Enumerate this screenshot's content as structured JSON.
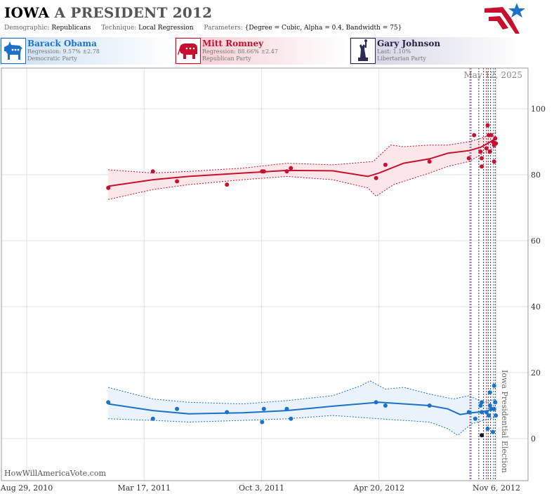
{
  "header": {
    "state": "IOWA",
    "title_rest": "A PRESIDENT 2012",
    "demographic_label": "Demographic:",
    "demographic_value": "Republicans",
    "technique_label": "Technique:",
    "technique_value": "Local Regression",
    "parameters_label": "Parameters:",
    "parameters_value": "{Degree = Cubic, Alpha = 0.4, Bandwidth = 75}",
    "logo_icon": "star-flag-logo-icon"
  },
  "candidates": [
    {
      "name": "Barack Obama",
      "stat": "Regression: 9.57% ±2.78",
      "party": "Democratic Party",
      "color": "#1a73c9",
      "icon": "donkey-icon"
    },
    {
      "name": "Mitt Romney",
      "stat": "Regression: 88.66% ±2.47",
      "party": "Republican Party",
      "color": "#c8102e",
      "icon": "elephant-icon"
    },
    {
      "name": "Gary Johnson",
      "stat": "Last: 1.10%",
      "party": "Libertarian Party",
      "color": "#222244",
      "icon": "statue-of-liberty-icon"
    }
  ],
  "chart_data": {
    "type": "scatter",
    "date_label": "May 12, 2025",
    "event_label": "Iowa Presidential Election",
    "watermark": "HowWillAmericaVote.com",
    "x_ticks": [
      "2010-08-29",
      "2011-03-17",
      "2011-10-03",
      "2012-04-20",
      "2012-11-06"
    ],
    "x_tick_labels": [
      "Aug 29, 2010",
      "Mar 17, 2011",
      "Oct 3, 2011",
      "Apr 20, 2012",
      "Nov 6, 2012"
    ],
    "xlim": [
      "2010-08-29",
      "2012-11-06"
    ],
    "y_ticks": [
      0,
      20,
      40,
      60,
      80,
      100
    ],
    "ylim": [
      -5,
      110
    ],
    "grid": true,
    "vlines": [
      {
        "date": "2012-09-22",
        "color": "#c8102e"
      },
      {
        "date": "2012-09-24",
        "color": "#1a73c9"
      },
      {
        "date": "2012-10-07",
        "color": "#333333"
      },
      {
        "date": "2012-10-15",
        "color": "#333333"
      },
      {
        "date": "2012-10-20",
        "color": "#c8102e"
      },
      {
        "date": "2012-10-23",
        "color": "#333333"
      },
      {
        "date": "2012-10-27",
        "color": "#333333"
      },
      {
        "date": "2012-11-01",
        "color": "#1a73c9"
      },
      {
        "date": "2012-11-04",
        "color": "#333333"
      }
    ],
    "series": [
      {
        "name": "Mitt Romney",
        "color": "#c8102e",
        "band_fill": "#fbe6ea",
        "points": [
          [
            "2011-01-15",
            76
          ],
          [
            "2011-04-01",
            81
          ],
          [
            "2011-05-12",
            78
          ],
          [
            "2011-08-05",
            77
          ],
          [
            "2011-10-04",
            81
          ],
          [
            "2011-10-07",
            81
          ],
          [
            "2011-11-15",
            81
          ],
          [
            "2011-11-22",
            82
          ],
          [
            "2012-04-15",
            79
          ],
          [
            "2012-05-01",
            83
          ],
          [
            "2012-07-15",
            84
          ],
          [
            "2012-09-20",
            85
          ],
          [
            "2012-09-29",
            92
          ],
          [
            "2012-10-10",
            87
          ],
          [
            "2012-10-12",
            82.5
          ],
          [
            "2012-10-12",
            85
          ],
          [
            "2012-10-20",
            88
          ],
          [
            "2012-10-22",
            95
          ],
          [
            "2012-10-24",
            92
          ],
          [
            "2012-10-26",
            87
          ],
          [
            "2012-10-28",
            92
          ],
          [
            "2012-10-31",
            90
          ],
          [
            "2012-11-02",
            89
          ],
          [
            "2012-11-02",
            84
          ],
          [
            "2012-11-04",
            91
          ],
          [
            "2012-11-05",
            89.5
          ]
        ],
        "trend": [
          [
            "2011-01-15",
            76.5
          ],
          [
            "2011-04-01",
            78.5
          ],
          [
            "2011-06-01",
            79.5
          ],
          [
            "2011-09-01",
            80.5
          ],
          [
            "2011-11-15",
            81.3
          ],
          [
            "2012-02-01",
            81.2
          ],
          [
            "2012-04-01",
            79.5
          ],
          [
            "2012-04-20",
            80.5
          ],
          [
            "2012-06-01",
            83.5
          ],
          [
            "2012-07-15",
            84.8
          ],
          [
            "2012-08-15",
            86.5
          ],
          [
            "2012-09-20",
            87.3
          ],
          [
            "2012-10-10",
            88.3
          ],
          [
            "2012-10-25",
            89.8
          ],
          [
            "2012-11-05",
            91
          ]
        ],
        "upper": [
          [
            "2011-01-15",
            81.5
          ],
          [
            "2011-04-01",
            80.5
          ],
          [
            "2011-06-01",
            81
          ],
          [
            "2011-09-01",
            82
          ],
          [
            "2011-11-15",
            83.5
          ],
          [
            "2012-02-01",
            83
          ],
          [
            "2012-04-10",
            84
          ],
          [
            "2012-05-10",
            89
          ],
          [
            "2012-06-01",
            88.5
          ],
          [
            "2012-07-15",
            89
          ],
          [
            "2012-08-15",
            89
          ],
          [
            "2012-09-20",
            90
          ],
          [
            "2012-10-10",
            91
          ],
          [
            "2012-10-25",
            92
          ],
          [
            "2012-11-05",
            93
          ]
        ],
        "lower": [
          [
            "2011-01-15",
            72.5
          ],
          [
            "2011-04-01",
            75.5
          ],
          [
            "2011-06-01",
            77
          ],
          [
            "2011-09-01",
            78.5
          ],
          [
            "2011-11-15",
            79.5
          ],
          [
            "2012-02-01",
            78.5
          ],
          [
            "2012-04-01",
            76
          ],
          [
            "2012-04-15",
            73.5
          ],
          [
            "2012-05-15",
            77
          ],
          [
            "2012-07-15",
            80.5
          ],
          [
            "2012-08-15",
            82.5
          ],
          [
            "2012-09-20",
            84
          ],
          [
            "2012-10-10",
            86
          ],
          [
            "2012-10-25",
            87.5
          ],
          [
            "2012-11-05",
            88.5
          ]
        ]
      },
      {
        "name": "Barack Obama",
        "color": "#1a73c9",
        "band_fill": "#eaf2fb",
        "points": [
          [
            "2011-01-15",
            11
          ],
          [
            "2011-04-01",
            6
          ],
          [
            "2011-05-12",
            9
          ],
          [
            "2011-08-05",
            8
          ],
          [
            "2011-10-04",
            5
          ],
          [
            "2011-10-07",
            9
          ],
          [
            "2011-11-15",
            9
          ],
          [
            "2011-11-22",
            6
          ],
          [
            "2012-04-15",
            11
          ],
          [
            "2012-05-01",
            10
          ],
          [
            "2012-07-15",
            10
          ],
          [
            "2012-09-20",
            8
          ],
          [
            "2012-10-01",
            6
          ],
          [
            "2012-10-10",
            10
          ],
          [
            "2012-10-12",
            11
          ],
          [
            "2012-10-12",
            8
          ],
          [
            "2012-10-20",
            8
          ],
          [
            "2012-10-22",
            3
          ],
          [
            "2012-10-24",
            7
          ],
          [
            "2012-10-26",
            10
          ],
          [
            "2012-10-26",
            14
          ],
          [
            "2012-10-28",
            9
          ],
          [
            "2012-10-31",
            2
          ],
          [
            "2012-11-02",
            9
          ],
          [
            "2012-11-02",
            16
          ],
          [
            "2012-11-04",
            11
          ],
          [
            "2012-11-05",
            7
          ]
        ],
        "trend": [
          [
            "2011-01-15",
            10.5
          ],
          [
            "2011-04-01",
            8.5
          ],
          [
            "2011-06-01",
            7.5
          ],
          [
            "2011-09-01",
            7.8
          ],
          [
            "2011-11-15",
            8.5
          ],
          [
            "2012-02-01",
            9.8
          ],
          [
            "2012-04-20",
            11
          ],
          [
            "2012-07-15",
            10
          ],
          [
            "2012-08-15",
            9
          ],
          [
            "2012-09-05",
            7.3
          ],
          [
            "2012-09-25",
            7.8
          ],
          [
            "2012-10-15",
            8.2
          ],
          [
            "2012-11-05",
            9
          ]
        ],
        "upper": [
          [
            "2011-01-15",
            15.5
          ],
          [
            "2011-04-01",
            12
          ],
          [
            "2011-06-01",
            11
          ],
          [
            "2011-09-01",
            10.5
          ],
          [
            "2011-11-15",
            11.5
          ],
          [
            "2012-02-01",
            13
          ],
          [
            "2012-03-20",
            16
          ],
          [
            "2012-04-05",
            17.5
          ],
          [
            "2012-05-01",
            15
          ],
          [
            "2012-06-01",
            15.5
          ],
          [
            "2012-07-15",
            13.5
          ],
          [
            "2012-08-25",
            12
          ],
          [
            "2012-09-20",
            13
          ],
          [
            "2012-10-15",
            11
          ],
          [
            "2012-11-05",
            12
          ]
        ],
        "lower": [
          [
            "2011-01-15",
            6
          ],
          [
            "2011-04-01",
            5.5
          ],
          [
            "2011-06-01",
            5
          ],
          [
            "2011-09-01",
            5.5
          ],
          [
            "2011-11-15",
            6
          ],
          [
            "2012-02-01",
            7
          ],
          [
            "2012-04-20",
            6
          ],
          [
            "2012-06-01",
            5.5
          ],
          [
            "2012-07-15",
            5
          ],
          [
            "2012-08-15",
            3
          ],
          [
            "2012-09-01",
            1
          ],
          [
            "2012-09-25",
            4.5
          ],
          [
            "2012-10-15",
            5.5
          ],
          [
            "2012-11-05",
            6.5
          ]
        ]
      },
      {
        "name": "Gary Johnson",
        "color": "#111122",
        "points": [
          [
            "2012-10-12",
            1
          ]
        ]
      }
    ]
  }
}
